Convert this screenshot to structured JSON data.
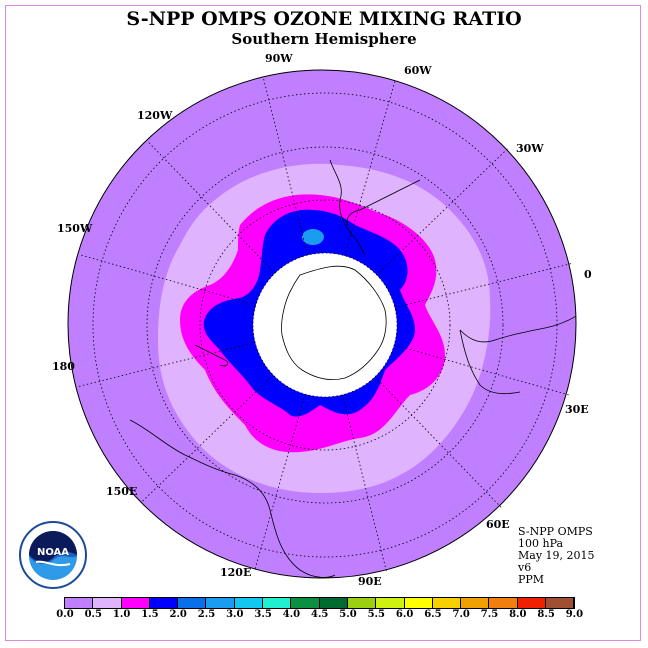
{
  "title": "S-NPP OMPS OZONE MIXING RATIO",
  "subtitle": "Southern Hemisphere",
  "info": {
    "instrument": "S-NPP OMPS",
    "pressure": "100 hPa",
    "date": "May 19, 2015",
    "version": "v6",
    "units": "PPM"
  },
  "longitude_labels": [
    "90W",
    "60W",
    "30W",
    "0",
    "30E",
    "60E",
    "90E",
    "120E",
    "150E",
    "180",
    "150W",
    "120W"
  ],
  "logo_text": "NOAA",
  "colorbar": {
    "ticks": [
      "0.0",
      "0.5",
      "1.0",
      "1.5",
      "2.0",
      "2.5",
      "3.0",
      "3.5",
      "4.0",
      "4.5",
      "5.0",
      "5.5",
      "6.0",
      "6.5",
      "7.0",
      "7.5",
      "8.0",
      "8.5",
      "9.0"
    ],
    "colors": [
      "#bf7fff",
      "#e0b3ff",
      "#ff00ff",
      "#0000ff",
      "#0a6fe8",
      "#1a9df0",
      "#10c8f0",
      "#20f0d0",
      "#0a9040",
      "#006b30",
      "#9ad010",
      "#d0f010",
      "#ffff00",
      "#f7d000",
      "#f0a000",
      "#f07f10",
      "#f02000",
      "#a05030"
    ]
  },
  "map_colors": {
    "background": "#bf7fff",
    "band_05": "#e0b3ff",
    "band_10": "#ff00ff",
    "band_15": "#0000ff",
    "band_20": "#1a9df0",
    "pole": "#ffffff"
  }
}
